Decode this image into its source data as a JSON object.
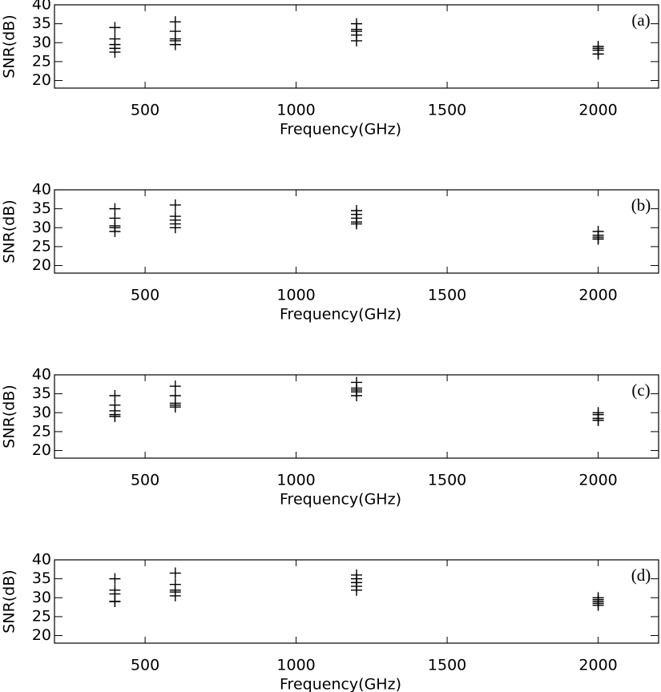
{
  "chart_data": [
    {
      "type": "scatter",
      "annotation": "(a)",
      "x_label": "Frequency(GHz)",
      "y_label": "SNR(dB)",
      "color": "#000000",
      "x": [
        400,
        400,
        400,
        400,
        400,
        600,
        600,
        600,
        600,
        600,
        1200,
        1200,
        1200,
        1200,
        1200,
        2000,
        2000,
        2000,
        2000,
        2000
      ],
      "values": [
        34,
        31,
        29.5,
        28.5,
        27.5,
        35.5,
        33,
        31,
        30.5,
        29.5,
        35,
        33.5,
        33,
        32,
        30.5,
        29,
        28.5,
        28,
        27,
        27
      ],
      "xlim": [
        200,
        2200
      ],
      "ylim": [
        18,
        40
      ],
      "xticks": [
        500,
        1000,
        1500,
        2000
      ],
      "yticks": [
        20,
        25,
        30,
        35,
        40
      ]
    },
    {
      "type": "scatter",
      "annotation": "(b)",
      "x_label": "Frequency(GHz)",
      "y_label": "SNR(dB)",
      "color": "#000000",
      "x": [
        400,
        400,
        400,
        400,
        400,
        600,
        600,
        600,
        600,
        600,
        1200,
        1200,
        1200,
        1200,
        1200,
        2000,
        2000,
        2000,
        2000,
        2000
      ],
      "values": [
        35,
        32.5,
        30.5,
        30,
        29,
        36,
        33,
        32,
        31,
        30,
        34.5,
        33.5,
        32.5,
        31.5,
        31,
        29,
        28,
        27.5,
        27,
        27
      ],
      "xlim": [
        200,
        2200
      ],
      "ylim": [
        18,
        40
      ],
      "xticks": [
        500,
        1000,
        1500,
        2000
      ],
      "yticks": [
        20,
        25,
        30,
        35,
        40
      ]
    },
    {
      "type": "scatter",
      "annotation": "(c)",
      "x_label": "Frequency(GHz)",
      "y_label": "SNR(dB)",
      "color": "#000000",
      "x": [
        400,
        400,
        400,
        400,
        400,
        600,
        600,
        600,
        600,
        600,
        1200,
        1200,
        1200,
        1200,
        1200,
        2000,
        2000,
        2000,
        2000,
        2000
      ],
      "values": [
        34.5,
        32,
        30.5,
        29.5,
        29,
        37,
        34.5,
        32.5,
        32,
        31.5,
        38,
        36.5,
        36,
        35.5,
        34.5,
        30,
        29.5,
        28.5,
        28,
        28
      ],
      "xlim": [
        200,
        2200
      ],
      "ylim": [
        18,
        40
      ],
      "xticks": [
        500,
        1000,
        1500,
        2000
      ],
      "yticks": [
        20,
        25,
        30,
        35,
        40
      ]
    },
    {
      "type": "scatter",
      "annotation": "(d)",
      "x_label": "Frequency(GHz)",
      "y_label": "SNR(dB)",
      "color": "#000000",
      "x": [
        400,
        400,
        400,
        400,
        400,
        600,
        600,
        600,
        600,
        600,
        1200,
        1200,
        1200,
        1200,
        1200,
        2000,
        2000,
        2000,
        2000,
        2000
      ],
      "values": [
        35,
        32,
        31,
        29,
        29,
        36.5,
        33.5,
        32,
        31.5,
        30.5,
        36,
        35,
        34,
        33,
        32,
        30,
        29.5,
        29,
        28.5,
        28
      ],
      "xlim": [
        200,
        2200
      ],
      "ylim": [
        18,
        40
      ],
      "xticks": [
        500,
        1000,
        1500,
        2000
      ],
      "yticks": [
        20,
        25,
        30,
        35,
        40
      ]
    }
  ]
}
